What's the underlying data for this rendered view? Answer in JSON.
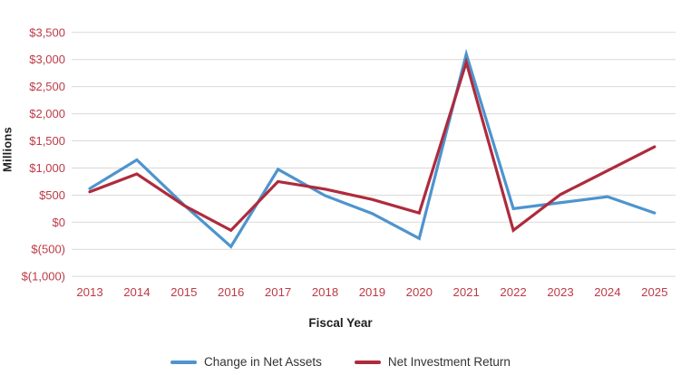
{
  "chart_data": {
    "type": "line",
    "x": [
      2013,
      2014,
      2015,
      2016,
      2017,
      2018,
      2019,
      2020,
      2021,
      2022,
      2023,
      2024,
      2025
    ],
    "series": [
      {
        "name": "Change in Net Assets",
        "color": "#4E94CE",
        "values": [
          620,
          1150,
          320,
          -450,
          975,
          490,
          160,
          -300,
          3100,
          250,
          360,
          470,
          170
        ]
      },
      {
        "name": "Net Investment Return",
        "color": "#AE2B3C",
        "values": [
          560,
          890,
          310,
          -150,
          750,
          610,
          420,
          170,
          2950,
          -150,
          510,
          950,
          1390
        ]
      }
    ],
    "xlabel": "Fiscal Year",
    "ylabel": "Millions",
    "ylim": [
      -1000,
      3500
    ],
    "ytick_step": 500,
    "ytick_labels": [
      "$3,500",
      "$3,000",
      "$2,500",
      "$2,000",
      "$1,500",
      "$1,000",
      "$500",
      "$0",
      "$(500)",
      "$(1,000)"
    ],
    "grid": "horizontal-only",
    "grid_color": "#D9D9D9",
    "axis_tick_color": "#BE3A46",
    "legend_position": "bottom-center",
    "unit_note": "values in $ millions"
  },
  "legend": {
    "items": [
      {
        "label": "Change in Net Assets",
        "color": "#4E94CE"
      },
      {
        "label": "Net Investment Return",
        "color": "#AE2B3C"
      }
    ]
  }
}
